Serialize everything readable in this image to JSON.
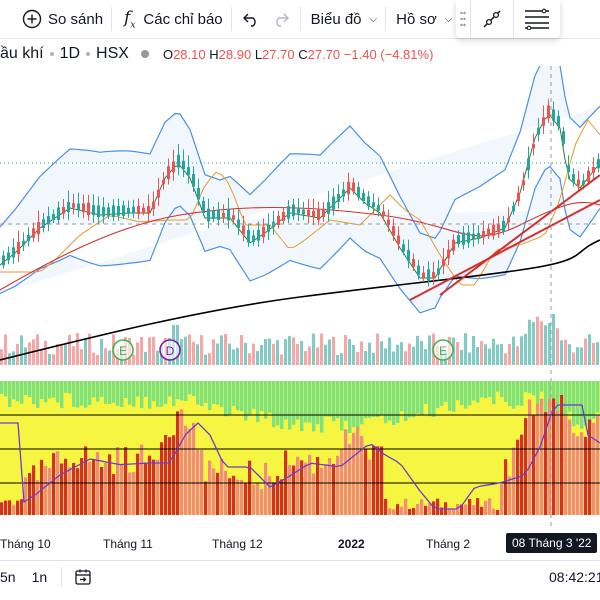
{
  "toolbar": {
    "compare_label": "So sánh",
    "indicators_label": "Các chỉ báo",
    "chart_type_label": "Biểu đồ",
    "profile_label": "Hồ sơ"
  },
  "legend": {
    "symbol": "ầu khí",
    "interval": "1D",
    "exchange": "HSX",
    "open_label": "O",
    "open": "28.10",
    "high_label": "H",
    "high": "28.90",
    "low_label": "L",
    "low": "27.70",
    "close_label": "C",
    "close": "27.70",
    "change": "−1.40 (−4.81%)"
  },
  "colors": {
    "up": "#26a69a",
    "down": "#ef5350",
    "bb": "#4a90e2",
    "ma_long": "#000000",
    "ma_mid": "#d32f2f",
    "osc_bg_up": "#f5f542",
    "osc_bg_down": "#7ee37e"
  },
  "events": [
    {
      "text": "E",
      "color": "#4caf50"
    },
    {
      "text": "D",
      "color": "#7b1fa2"
    },
    {
      "text": "E",
      "color": "#4caf50"
    }
  ],
  "time_axis": {
    "labels": [
      "Tháng 10",
      "Tháng 11",
      "Tháng 12",
      "2022",
      "Tháng 2"
    ],
    "cursor": "08 Tháng 3 '22"
  },
  "bottom": {
    "ranges": [
      "5n",
      "1n"
    ],
    "clock": "08:42:21"
  },
  "chart_data": {
    "type": "candlestick",
    "symbol_interval": "1D",
    "last_bar": {
      "open": 28.1,
      "high": 28.9,
      "low": 27.7,
      "close": 27.7,
      "change": -1.4,
      "change_pct": -4.81
    },
    "x_labels": [
      "Tháng 10",
      "Tháng 11",
      "Tháng 12",
      "2022",
      "Tháng 2",
      "08 Tháng 3 '22"
    ],
    "indicators": [
      "Bollinger Bands",
      "Moving averages",
      "Volume",
      "Oscillator"
    ]
  }
}
